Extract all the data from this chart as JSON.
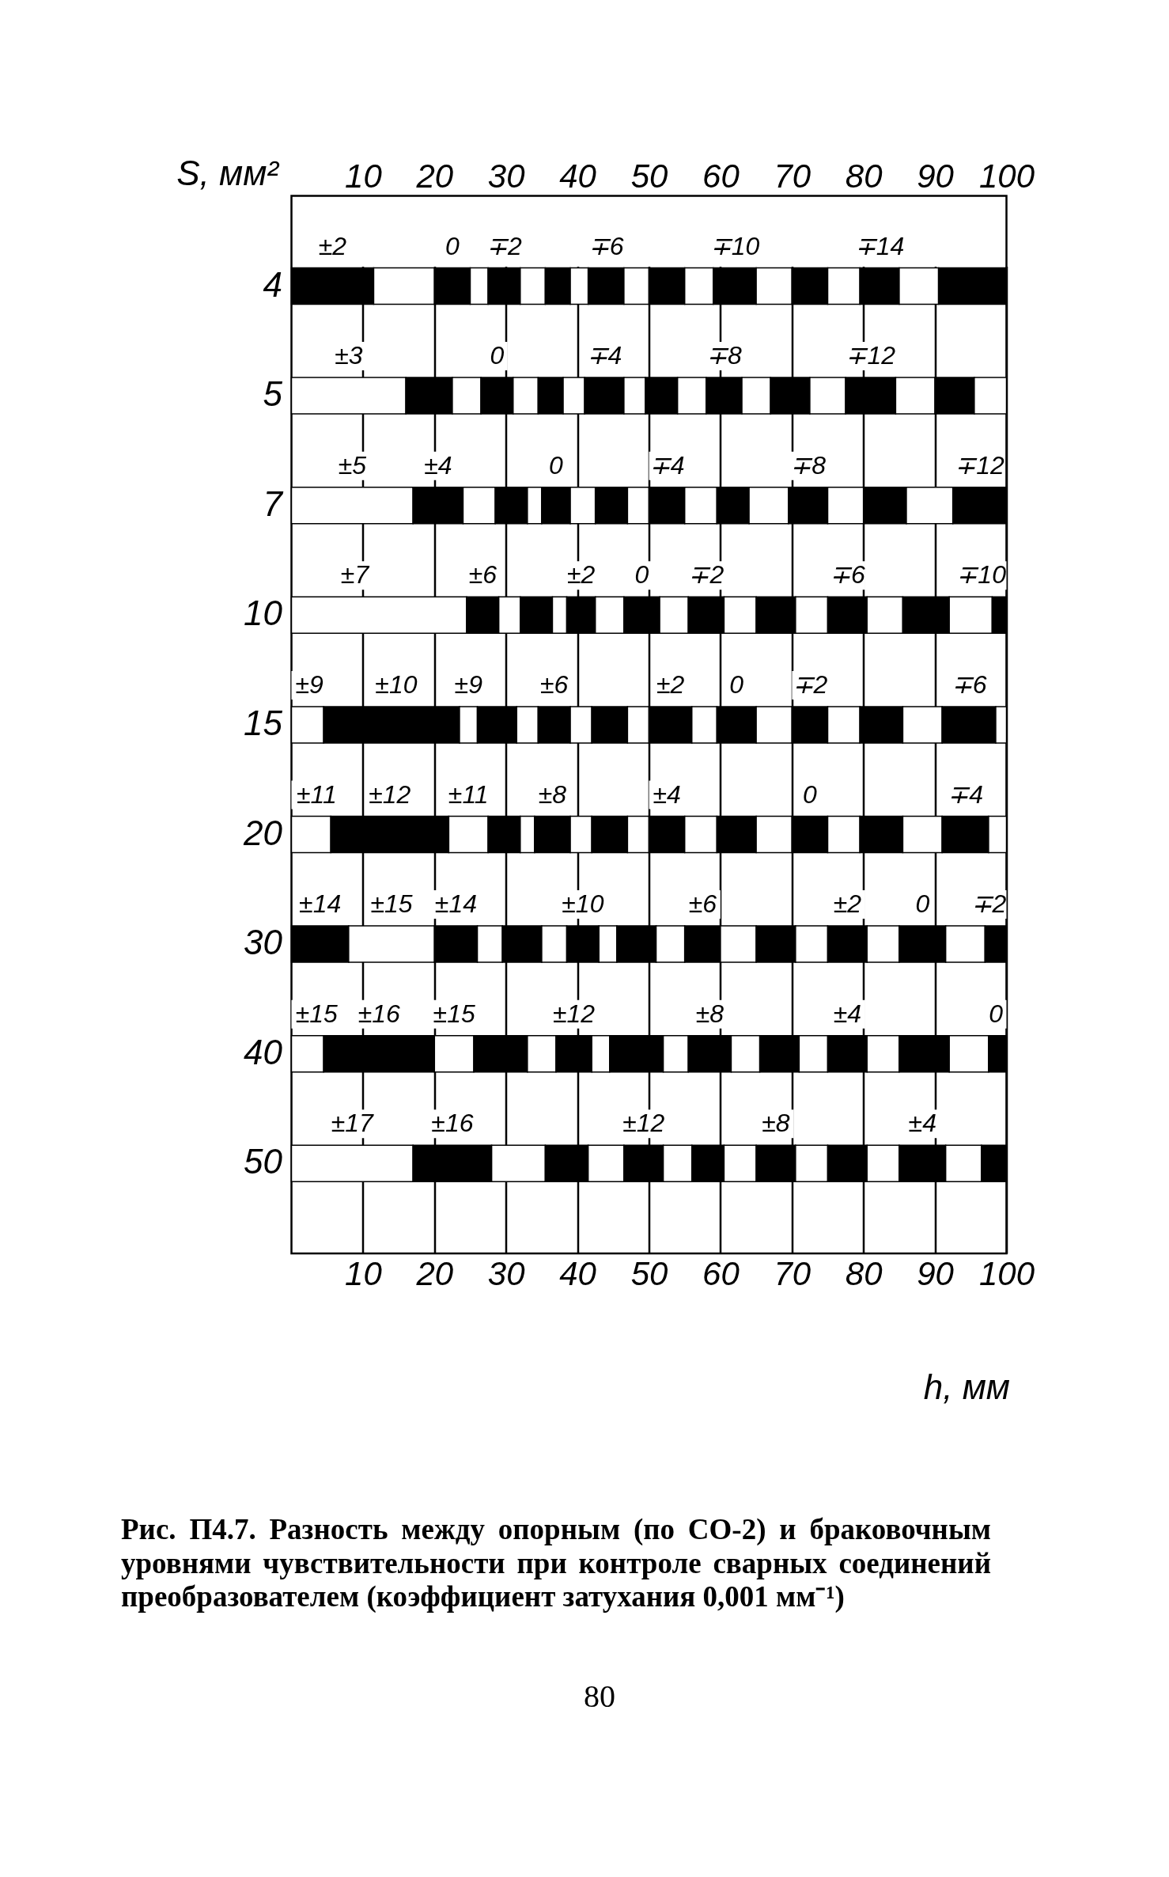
{
  "chart_data": {
    "type": "bar",
    "orientation": "horizontal",
    "stacked": true,
    "categories": [
      "4",
      "5",
      "7",
      "10",
      "15",
      "20",
      "30",
      "40",
      "50"
    ],
    "series": [
      {
        "values": [
          11.5,
          16,
          17,
          24.5,
          4.5,
          5.5,
          8,
          4.5,
          17
        ],
        "colors": [
          "#000000",
          "#ffffff",
          "#ffffff",
          "#ffffff",
          "#ffffff",
          "#ffffff",
          "#000000",
          "#ffffff",
          "#ffffff"
        ]
      },
      {
        "values": [
          8.5,
          6.5,
          7,
          4.5,
          19,
          16.5,
          12,
          15.5,
          11
        ],
        "colors": [
          "#ffffff",
          "#000000",
          "#000000",
          "#000000",
          "#000000",
          "#000000",
          "#ffffff",
          "#000000",
          "#000000"
        ]
      },
      {
        "values": [
          5,
          4,
          4.5,
          3,
          2.5,
          5.5,
          6,
          5.5,
          7.5
        ],
        "colors": [
          "#000000",
          "#ffffff",
          "#ffffff",
          "#ffffff",
          "#ffffff",
          "#ffffff",
          "#000000",
          "#ffffff",
          "#ffffff"
        ]
      },
      {
        "values": [
          2.5,
          4.5,
          4.5,
          4.5,
          5.5,
          4.5,
          3.5,
          7.5,
          6
        ],
        "colors": [
          "#ffffff",
          "#000000",
          "#000000",
          "#000000",
          "#000000",
          "#000000",
          "#ffffff",
          "#000000",
          "#000000"
        ]
      },
      {
        "values": [
          4.5,
          3.5,
          2,
          2,
          3,
          2,
          5.5,
          4,
          5
        ],
        "colors": [
          "#000000",
          "#ffffff",
          "#ffffff",
          "#ffffff",
          "#ffffff",
          "#ffffff",
          "#000000",
          "#ffffff",
          "#ffffff"
        ]
      },
      {
        "values": [
          3.5,
          3.5,
          4,
          4,
          4.5,
          5,
          3.5,
          5,
          5.5
        ],
        "colors": [
          "#ffffff",
          "#000000",
          "#000000",
          "#000000",
          "#000000",
          "#000000",
          "#ffffff",
          "#000000",
          "#000000"
        ]
      },
      {
        "values": [
          3.5,
          3,
          3.5,
          4,
          3,
          3,
          4.5,
          2.5,
          4
        ],
        "colors": [
          "#000000",
          "#ffffff",
          "#ffffff",
          "#ffffff",
          "#ffffff",
          "#ffffff",
          "#000000",
          "#ffffff",
          "#ffffff"
        ]
      },
      {
        "values": [
          2.5,
          5.5,
          4.5,
          5,
          5,
          5,
          2.5,
          7.5,
          4.5
        ],
        "colors": [
          "#ffffff",
          "#000000",
          "#000000",
          "#000000",
          "#000000",
          "#000000",
          "#ffffff",
          "#000000",
          "#000000"
        ]
      },
      {
        "values": [
          5,
          3,
          3,
          4,
          3,
          3,
          5.5,
          3.5,
          4.5
        ],
        "colors": [
          "#000000",
          "#ffffff",
          "#ffffff",
          "#ffffff",
          "#ffffff",
          "#ffffff",
          "#000000",
          "#ffffff",
          "#ffffff"
        ]
      },
      {
        "values": [
          3.5,
          4.5,
          5,
          5,
          6,
          5,
          4,
          6,
          5.5
        ],
        "colors": [
          "#ffffff",
          "#000000",
          "#000000",
          "#000000",
          "#000000",
          "#000000",
          "#ffffff",
          "#000000",
          "#000000"
        ]
      },
      {
        "values": [
          5,
          4,
          4.5,
          4.5,
          3.5,
          4.5,
          5,
          4,
          4.5
        ],
        "colors": [
          "#000000",
          "#ffffff",
          "#ffffff",
          "#ffffff",
          "#ffffff",
          "#ffffff",
          "#000000",
          "#ffffff",
          "#ffffff"
        ]
      },
      {
        "values": [
          4,
          5,
          4.5,
          5.5,
          5.5,
          5.5,
          5,
          5.5,
          5.5
        ],
        "colors": [
          "#ffffff",
          "#000000",
          "#000000",
          "#000000",
          "#000000",
          "#000000",
          "#ffffff",
          "#000000",
          "#000000"
        ]
      },
      {
        "values": [
          6,
          4,
          5.5,
          4.5,
          5,
          5,
          5.5,
          4,
          4.5
        ],
        "colors": [
          "#000000",
          "#ffffff",
          "#ffffff",
          "#ffffff",
          "#ffffff",
          "#ffffff",
          "#000000",
          "#ffffff",
          "#ffffff"
        ]
      },
      {
        "values": [
          5,
          5.5,
          5.5,
          5.5,
          5,
          5,
          4.5,
          5.5,
          6.5
        ],
        "colors": [
          "#ffffff",
          "#000000",
          "#000000",
          "#000000",
          "#000000",
          "#000000",
          "#ffffff",
          "#000000",
          "#000000"
        ]
      },
      {
        "values": [
          5,
          5,
          5,
          5,
          4.5,
          4.5,
          5.5,
          4.5,
          5
        ],
        "colors": [
          "#000000",
          "#ffffff",
          "#ffffff",
          "#ffffff",
          "#ffffff",
          "#ffffff",
          "#000000",
          "#ffffff",
          "#ffffff"
        ]
      },
      {
        "values": [
          4.5,
          7,
          6,
          6.5,
          6,
          6,
          4.5,
          7,
          3.5
        ],
        "colors": [
          "#ffffff",
          "#000000",
          "#000000",
          "#000000",
          "#000000",
          "#000000",
          "#ffffff",
          "#000000",
          "#000000"
        ]
      },
      {
        "values": [
          5.5,
          5.5,
          6.5,
          6,
          5.5,
          5.5,
          6.5,
          5.5,
          null
        ],
        "colors": [
          "#000000",
          "#ffffff",
          "#ffffff",
          "#ffffff",
          "#ffffff",
          "#ffffff",
          "#000000",
          "#ffffff",
          null
        ]
      },
      {
        "values": [
          5.5,
          5.5,
          7.5,
          2,
          7.5,
          6.5,
          5.5,
          2.5,
          null
        ],
        "colors": [
          "#ffffff",
          "#000000",
          "#000000",
          "#000000",
          "#000000",
          "#000000",
          "#ffffff",
          "#000000",
          null
        ]
      },
      {
        "values": [
          9.5,
          4.5,
          null,
          null,
          1.5,
          2.5,
          3,
          null,
          null
        ],
        "colors": [
          "#000000",
          "#ffffff",
          null,
          null,
          "#ffffff",
          "#ffffff",
          "#000000",
          null,
          null
        ]
      }
    ],
    "xlim": [
      0,
      100
    ],
    "xticks": [
      10,
      20,
      30,
      40,
      50,
      60,
      70,
      80,
      90,
      100
    ],
    "x2lim": [
      0,
      100
    ],
    "x2ticks": [
      10,
      20,
      30,
      40,
      50,
      60,
      70,
      80,
      90,
      100
    ],
    "xlabel": "h, мм",
    "ylabel": "S, мм²",
    "grid": "x",
    "annotations": [
      {
        "text": "±2",
        "x": 11.5,
        "y": "4"
      },
      {
        "text": "0",
        "x": 25,
        "y": "4"
      },
      {
        "text": "∓2",
        "x": 32,
        "y": "4"
      },
      {
        "text": "∓6",
        "x": 46.5,
        "y": "4"
      },
      {
        "text": "∓10",
        "x": 65,
        "y": "4"
      },
      {
        "text": "∓14",
        "x": 85,
        "y": "4"
      },
      {
        "text": "±3",
        "x": 16,
        "y": "5"
      },
      {
        "text": "0",
        "x": 31,
        "y": "5"
      },
      {
        "text": "∓4",
        "x": 46.5,
        "y": "5"
      },
      {
        "text": "∓8",
        "x": 63,
        "y": "5"
      },
      {
        "text": "∓12",
        "x": 84.5,
        "y": "5"
      },
      {
        "text": "±5",
        "x": 17,
        "y": "7"
      },
      {
        "text": "±4",
        "x": 24,
        "y": "7"
      },
      {
        "text": "0",
        "x": 39,
        "y": "7"
      },
      {
        "text": "∓4",
        "x": 55,
        "y": "7"
      },
      {
        "text": "∓8",
        "x": 75,
        "y": "7"
      },
      {
        "text": "∓12",
        "x": 100,
        "y": "7"
      },
      {
        "text": "±7",
        "x": 0,
        "y": "10"
      },
      {
        "text": "±6",
        "x": 29,
        "y": "10"
      },
      {
        "text": "±2",
        "x": 42.5,
        "y": "10"
      },
      {
        "text": "0",
        "x": 51.5,
        "y": "10"
      },
      {
        "text": "∓2",
        "x": 60.5,
        "y": "10"
      },
      {
        "text": "∓6",
        "x": 80.5,
        "y": "10"
      },
      {
        "text": "∓10",
        "x": 100,
        "y": "10"
      },
      {
        "text": "±9",
        "x": 4.5,
        "y": "15"
      },
      {
        "text": "±10",
        "x": 23.5,
        "y": "15"
      },
      {
        "text": "±9",
        "x": 26,
        "y": "15"
      },
      {
        "text": "±6",
        "x": 39,
        "y": "15"
      },
      {
        "text": "±2",
        "x": 56,
        "y": "15"
      },
      {
        "text": "0",
        "x": 65,
        "y": "15"
      },
      {
        "text": "∓2",
        "x": 75,
        "y": "15"
      },
      {
        "text": "∓6",
        "x": 98.5,
        "y": "15"
      },
      {
        "text": "±11",
        "x": 5.5,
        "y": "20"
      },
      {
        "text": "±12",
        "x": 22,
        "y": "20"
      },
      {
        "text": "±11",
        "x": 27.5,
        "y": "20"
      },
      {
        "text": "±8",
        "x": 39,
        "y": "20"
      },
      {
        "text": "±4",
        "x": 55,
        "y": "20"
      },
      {
        "text": "0",
        "x": 75,
        "y": "20"
      },
      {
        "text": "∓4",
        "x": 97.5,
        "y": "20"
      },
      {
        "text": "±14",
        "x": 8,
        "y": "30"
      },
      {
        "text": "±15",
        "x": 20,
        "y": "30"
      },
      {
        "text": "±14",
        "x": 26,
        "y": "30"
      },
      {
        "text": "±10",
        "x": 43,
        "y": "30"
      },
      {
        "text": "±6",
        "x": 60,
        "y": "30"
      },
      {
        "text": "±2",
        "x": 80.5,
        "y": "30"
      },
      {
        "text": "0",
        "x": 91.5,
        "y": "30"
      },
      {
        "text": "∓2",
        "x": 100,
        "y": "30"
      },
      {
        "text": "±15",
        "x": 4.5,
        "y": "40"
      },
      {
        "text": "±16",
        "x": 20,
        "y": "40"
      },
      {
        "text": "±15",
        "x": 25.5,
        "y": "40"
      },
      {
        "text": "±12",
        "x": 42,
        "y": "40"
      },
      {
        "text": "±8",
        "x": 61.5,
        "y": "40"
      },
      {
        "text": "±4",
        "x": 80.5,
        "y": "40"
      },
      {
        "text": "0",
        "x": 100,
        "y": "40"
      },
      {
        "text": "±17",
        "x": 17,
        "y": "50"
      },
      {
        "text": "±16",
        "x": 28,
        "y": "50"
      },
      {
        "text": "±12",
        "x": 52,
        "y": "50"
      },
      {
        "text": "±8",
        "x": 70.5,
        "y": "50"
      },
      {
        "text": "±4",
        "x": 91.5,
        "y": "50"
      },
      "Рис. П4.7. Разность между опорным (по СО-2) и браковочным уровнями чувствительности при контроле сварных соединений преобразователем (коэффициент затухания 0,001 мм⁻¹)",
      "80"
    ]
  }
}
